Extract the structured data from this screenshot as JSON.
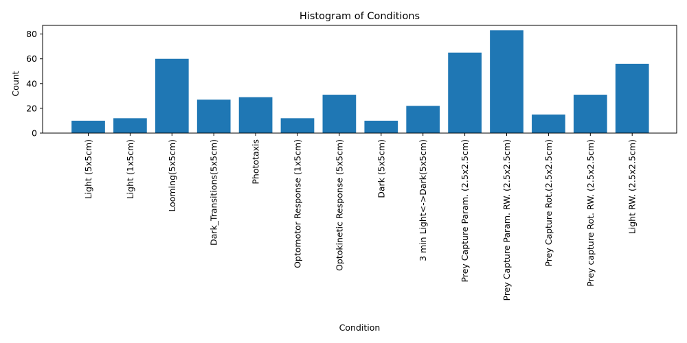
{
  "chart_data": {
    "type": "bar",
    "title": "Histogram of Conditions",
    "xlabel": "Condition",
    "ylabel": "Count",
    "ylim": [
      0,
      87
    ],
    "yticks": [
      0,
      20,
      40,
      60,
      80
    ],
    "grid": false,
    "bar_color": "#1f77b4",
    "categories": [
      "Light (5x5cm)",
      "Light (1x5cm)",
      "Looming(5x5cm)",
      "Dark_Transitions(5x5cm)",
      "Phototaxis",
      "Optomotor Response (1x5cm)",
      "Optokinetic Response (5x5cm)",
      "Dark (5x5cm)",
      "3 min Light<->Dark(5x5cm)",
      "Prey Capture Param. (2.5x2.5cm)",
      "Prey Capture Param. RW. (2.5x2.5cm)",
      "Prey Capture Rot.(2.5x2.5cm)",
      "Prey capture Rot. RW. (2.5x2.5cm)",
      "Light RW. (2.5x2.5cm)"
    ],
    "values": [
      10,
      12,
      60,
      27,
      29,
      12,
      31,
      10,
      22,
      65,
      83,
      15,
      31,
      56
    ]
  }
}
